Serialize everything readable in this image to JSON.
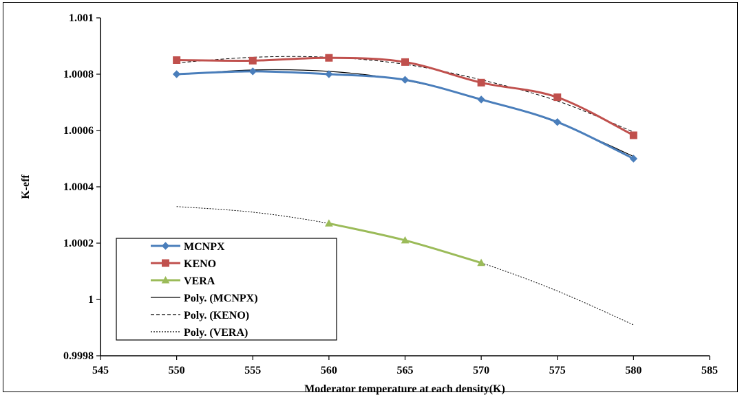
{
  "chart_data": {
    "type": "line",
    "xlabel": "Moderator temperature at each density(K)",
    "ylabel": "K-eff",
    "xlim": [
      545,
      585
    ],
    "ylim": [
      0.9998,
      1.001
    ],
    "xticks": [
      "545",
      "550",
      "555",
      "560",
      "565",
      "570",
      "575",
      "580",
      "585"
    ],
    "xtick_values": [
      545,
      550,
      555,
      560,
      565,
      570,
      575,
      580,
      585
    ],
    "yticks": [
      "0.9998",
      "1",
      "1.0002",
      "1.0004",
      "1.0006",
      "1.0008",
      "1.001"
    ],
    "ytick_values": [
      0.9998,
      1.0,
      1.0002,
      1.0004,
      1.0006,
      1.0008,
      1.001
    ],
    "grid": false,
    "legend_position": "bottom-left",
    "series": [
      {
        "name": "MCNPX",
        "color": "#4a7ebb",
        "marker": "diamond",
        "x": [
          550,
          555,
          560,
          565,
          570,
          575,
          580
        ],
        "y": [
          1.0008,
          1.00081,
          1.0008,
          1.00078,
          1.00071,
          1.00063,
          1.0005
        ]
      },
      {
        "name": "KENO",
        "color": "#c0504d",
        "marker": "square",
        "x": [
          550,
          555,
          560,
          565,
          570,
          575,
          580
        ],
        "y": [
          1.00085,
          1.000848,
          1.000858,
          1.000843,
          1.00077,
          1.000718,
          1.000583
        ]
      },
      {
        "name": "VERA",
        "color": "#9bbb59",
        "marker": "triangle",
        "x": [
          560,
          565,
          570
        ],
        "y": [
          1.00027,
          1.00021,
          1.00013
        ]
      }
    ],
    "trendlines": [
      {
        "name": "Poly. (MCNPX)",
        "of": "MCNPX",
        "style": "solid",
        "color": "#000000",
        "x": [
          550,
          555,
          560,
          565,
          570,
          575,
          580
        ],
        "y": [
          1.000798,
          1.000815,
          1.00081,
          1.000778,
          1.000712,
          1.000628,
          1.000508
        ]
      },
      {
        "name": "Poly. (KENO)",
        "of": "KENO",
        "style": "dashed",
        "color": "#000000",
        "x": [
          550,
          555,
          560,
          565,
          570,
          575,
          580
        ],
        "y": [
          1.00084,
          1.00086,
          1.00086,
          1.000835,
          1.00078,
          1.000705,
          1.000595
        ]
      },
      {
        "name": "Poly. (VERA)",
        "of": "VERA",
        "style": "dotted",
        "color": "#000000",
        "x": [
          550,
          555,
          560,
          565,
          570,
          575,
          580
        ],
        "y": [
          1.00033,
          1.00031,
          1.00027,
          1.00021,
          1.00013,
          1.00003,
          0.99991
        ]
      }
    ]
  }
}
